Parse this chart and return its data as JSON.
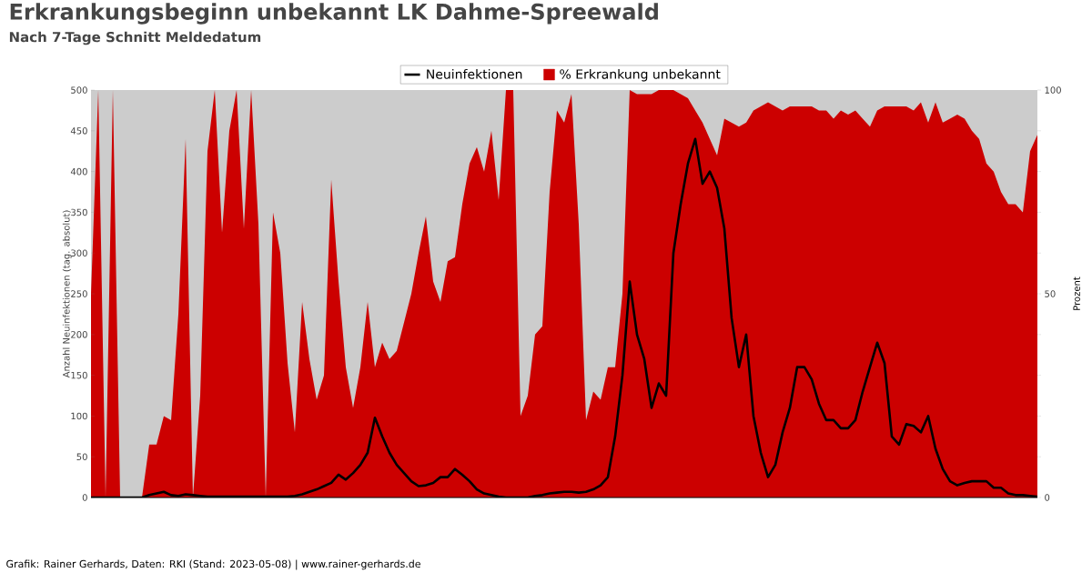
{
  "chart_data": {
    "type": "line",
    "title": "Erkrankungsbeginn unbekannt LK Dahme-Spreewald",
    "subtitle": "Nach 7-Tage Schnitt Meldedatum",
    "ylabel": "Anzahl Neuinfektionen (tag. absolut)",
    "y2label": "Prozent",
    "annotations": [
      "Grafik: Rainer Gerhards, Daten: RKI (Stand: 2023-05-08) | www.rainer-gerhards.de"
    ],
    "categories": [
      null,
      null,
      null,
      null,
      null,
      null,
      null,
      null,
      null,
      null,
      null,
      null,
      null,
      null,
      null,
      null,
      null,
      null,
      null,
      null,
      null,
      null,
      null,
      null,
      null,
      null,
      null,
      null,
      null,
      null,
      null,
      null,
      null,
      null,
      null,
      null,
      null,
      null,
      null,
      null,
      null,
      null,
      null,
      null,
      null,
      null,
      null,
      null,
      null,
      null,
      null,
      null,
      null,
      null,
      null,
      null,
      null,
      null,
      null,
      null,
      null,
      null,
      null,
      null,
      null,
      null,
      null,
      null,
      null,
      null,
      null,
      null,
      null,
      null,
      null,
      null,
      null,
      null,
      null,
      null,
      null,
      null,
      null,
      null,
      null,
      null,
      null,
      null,
      null,
      null,
      null,
      null,
      null,
      null,
      null,
      null,
      null,
      null,
      null,
      null,
      null,
      null,
      null,
      null,
      null,
      null,
      null,
      null,
      null,
      null,
      null,
      null,
      null,
      null,
      null,
      null,
      null,
      null,
      null,
      null,
      null,
      null,
      null,
      null,
      null,
      null,
      null,
      null,
      null,
      null,
      null
    ],
    "series": [
      {
        "name": "Neuinfektionen",
        "color": "#000000",
        "values": [
          0,
          0,
          0,
          0,
          0,
          0,
          0,
          0,
          3,
          5,
          7,
          3,
          2,
          4,
          3,
          2,
          1,
          1,
          1,
          1,
          1,
          1,
          1,
          1,
          1,
          1,
          1,
          1,
          2,
          4,
          7,
          10,
          14,
          18,
          28,
          22,
          30,
          40,
          55,
          98,
          75,
          55,
          40,
          30,
          20,
          14,
          15,
          18,
          25,
          25,
          35,
          28,
          20,
          10,
          5,
          3,
          1,
          0,
          0,
          0,
          0,
          2,
          3,
          5,
          6,
          7,
          7,
          6,
          7,
          10,
          15,
          25,
          75,
          150,
          265,
          200,
          170,
          110,
          140,
          125,
          300,
          360,
          410,
          440,
          385,
          400,
          380,
          330,
          220,
          160,
          200,
          100,
          55,
          25,
          40,
          80,
          110,
          160,
          160,
          145,
          115,
          95,
          95,
          85,
          85,
          95,
          130,
          160,
          190,
          165,
          75,
          65,
          90,
          88,
          80,
          100,
          60,
          35,
          20,
          15,
          18,
          20,
          20,
          20,
          12,
          12,
          5,
          3,
          3,
          2,
          1
        ]
      },
      {
        "name": "% Erkrankung unbekannt",
        "type": "area",
        "axis": "y2",
        "color": "#cc0000",
        "values": [
          50,
          100,
          0,
          100,
          0,
          0,
          0,
          0,
          13,
          13,
          20,
          19,
          45,
          88,
          0,
          25,
          85,
          100,
          65,
          90,
          100,
          66,
          100,
          67,
          0,
          70,
          60,
          33,
          16,
          48,
          34,
          24,
          30,
          78,
          53,
          32,
          22,
          32,
          48,
          32,
          38,
          34,
          36,
          43,
          50,
          60,
          69,
          53,
          48,
          58,
          59,
          72,
          82,
          86,
          80,
          90,
          73,
          100,
          100,
          20,
          25,
          40,
          42,
          75,
          95,
          92,
          99,
          67,
          19,
          26,
          24,
          32,
          32,
          50,
          100,
          99,
          99,
          99,
          100,
          100,
          100,
          99,
          98,
          95,
          92,
          88,
          84,
          93,
          92,
          91,
          92,
          95,
          96,
          97,
          96,
          95,
          96,
          96,
          96,
          96,
          95,
          95,
          93,
          95,
          94,
          95,
          93,
          91,
          95,
          96,
          96,
          96,
          96,
          95,
          97,
          92,
          97,
          92,
          93,
          94,
          93,
          90,
          88,
          82,
          80,
          75,
          72,
          72,
          70,
          85,
          89
        ]
      }
    ],
    "ylim": [
      0,
      500
    ],
    "yticks": [
      0,
      50,
      100,
      150,
      200,
      250,
      300,
      350,
      400,
      450,
      500
    ],
    "y2lim": [
      0,
      100
    ],
    "y2ticks": [
      0,
      {
        "value": 10,
        "label": null
      },
      {
        "value": 20,
        "label": null
      },
      {
        "value": 30,
        "label": null
      },
      {
        "value": 40,
        "label": null
      },
      50,
      {
        "value": 60,
        "label": null
      },
      {
        "value": 70,
        "label": null
      },
      {
        "value": 80,
        "label": null
      },
      {
        "value": 90,
        "label": null
      },
      100
    ],
    "legend": "top"
  }
}
